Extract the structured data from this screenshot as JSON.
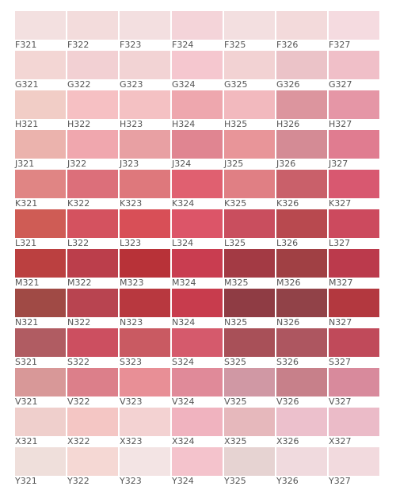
{
  "swatches": {
    "rows": [
      {
        "cells": [
          {
            "label": "F321",
            "color": "#f3e0e0"
          },
          {
            "label": "F322",
            "color": "#f3dcdc"
          },
          {
            "label": "F323",
            "color": "#f3dfe0"
          },
          {
            "label": "F324",
            "color": "#f4d4d9"
          },
          {
            "label": "F325",
            "color": "#f3dfe0"
          },
          {
            "label": "F326",
            "color": "#f3dadb"
          },
          {
            "label": "F327",
            "color": "#f5dbe0"
          }
        ]
      },
      {
        "cells": [
          {
            "label": "G321",
            "color": "#f3d6d4"
          },
          {
            "label": "G322",
            "color": "#f2d0d3"
          },
          {
            "label": "G323",
            "color": "#f2d3d4"
          },
          {
            "label": "G324",
            "color": "#f5c7cf"
          },
          {
            "label": "G325",
            "color": "#f2d2d3"
          },
          {
            "label": "G326",
            "color": "#ebc3c8"
          },
          {
            "label": "G327",
            "color": "#f0bfc8"
          }
        ]
      },
      {
        "cells": [
          {
            "label": "H321",
            "color": "#f1cdc6"
          },
          {
            "label": "H322",
            "color": "#f6c0c3"
          },
          {
            "label": "H323",
            "color": "#f4c1c3"
          },
          {
            "label": "H324",
            "color": "#eea7ae"
          },
          {
            "label": "H325",
            "color": "#f2b9be"
          },
          {
            "label": "H326",
            "color": "#dc959e"
          },
          {
            "label": "H327",
            "color": "#e596a6"
          }
        ]
      },
      {
        "cells": [
          {
            "label": "J321",
            "color": "#ebb3ad"
          },
          {
            "label": "J322",
            "color": "#f0a7ae"
          },
          {
            "label": "J323",
            "color": "#e8a0a3"
          },
          {
            "label": "J324",
            "color": "#e08591"
          },
          {
            "label": "J325",
            "color": "#e89599"
          },
          {
            "label": "J326",
            "color": "#d48b95"
          },
          {
            "label": "J327",
            "color": "#e07c90"
          }
        ]
      },
      {
        "cells": [
          {
            "label": "K321",
            "color": "#e08584"
          },
          {
            "label": "K322",
            "color": "#dc6f7a"
          },
          {
            "label": "K323",
            "color": "#de787c"
          },
          {
            "label": "K324",
            "color": "#e06070"
          },
          {
            "label": "K325",
            "color": "#e07f84"
          },
          {
            "label": "K326",
            "color": "#c9606a"
          },
          {
            "label": "K327",
            "color": "#d85870"
          }
        ]
      },
      {
        "cells": [
          {
            "label": "L321",
            "color": "#cf5c55"
          },
          {
            "label": "L322",
            "color": "#d4525f"
          },
          {
            "label": "L323",
            "color": "#d84f57"
          },
          {
            "label": "L324",
            "color": "#dc5568"
          },
          {
            "label": "L325",
            "color": "#c94e5e"
          },
          {
            "label": "L326",
            "color": "#b8494f"
          },
          {
            "label": "L327",
            "color": "#cc4a5e"
          }
        ]
      },
      {
        "cells": [
          {
            "label": "M321",
            "color": "#bb4040"
          },
          {
            "label": "M322",
            "color": "#bb3e4b"
          },
          {
            "label": "M323",
            "color": "#b83238"
          },
          {
            "label": "M324",
            "color": "#c93d50"
          },
          {
            "label": "M325",
            "color": "#a33a44"
          },
          {
            "label": "M326",
            "color": "#a04044"
          },
          {
            "label": "M327",
            "color": "#bb3a4c"
          }
        ]
      },
      {
        "cells": [
          {
            "label": "N321",
            "color": "#a04a45"
          },
          {
            "label": "N322",
            "color": "#b84450"
          },
          {
            "label": "N323",
            "color": "#b8383f"
          },
          {
            "label": "N324",
            "color": "#c83c4d"
          },
          {
            "label": "N325",
            "color": "#8f3c44"
          },
          {
            "label": "N326",
            "color": "#914248"
          },
          {
            "label": "N327",
            "color": "#b3383f"
          }
        ]
      },
      {
        "cells": [
          {
            "label": "S321",
            "color": "#b05c62"
          },
          {
            "label": "S322",
            "color": "#cc4f60"
          },
          {
            "label": "S323",
            "color": "#c95a62"
          },
          {
            "label": "S324",
            "color": "#d55a6c"
          },
          {
            "label": "S325",
            "color": "#a85058"
          },
          {
            "label": "S326",
            "color": "#ad5660"
          },
          {
            "label": "S327",
            "color": "#c04a5a"
          }
        ]
      },
      {
        "cells": [
          {
            "label": "V321",
            "color": "#d89898"
          },
          {
            "label": "V322",
            "color": "#dc7f8a"
          },
          {
            "label": "V323",
            "color": "#e88f96"
          },
          {
            "label": "V324",
            "color": "#e08a99"
          },
          {
            "label": "V325",
            "color": "#d098a4"
          },
          {
            "label": "V326",
            "color": "#c7808a"
          },
          {
            "label": "V327",
            "color": "#d88a9c"
          }
        ]
      },
      {
        "cells": [
          {
            "label": "X321",
            "color": "#efcfcc"
          },
          {
            "label": "X322",
            "color": "#f4c6c4"
          },
          {
            "label": "X323",
            "color": "#f3d2d2"
          },
          {
            "label": "X324",
            "color": "#f0b3bf"
          },
          {
            "label": "X325",
            "color": "#e6b8bc"
          },
          {
            "label": "X326",
            "color": "#ecc0cc"
          },
          {
            "label": "X327",
            "color": "#ebbbc8"
          }
        ]
      },
      {
        "cells": [
          {
            "label": "Y321",
            "color": "#efdfdb"
          },
          {
            "label": "Y322",
            "color": "#f5d8d4"
          },
          {
            "label": "Y323",
            "color": "#f3e4e4"
          },
          {
            "label": "Y324",
            "color": "#f4c3cc"
          },
          {
            "label": "Y325",
            "color": "#e6d3d2"
          },
          {
            "label": "Y326",
            "color": "#f0dade"
          },
          {
            "label": "Y327",
            "color": "#f2dade"
          }
        ]
      }
    ]
  }
}
